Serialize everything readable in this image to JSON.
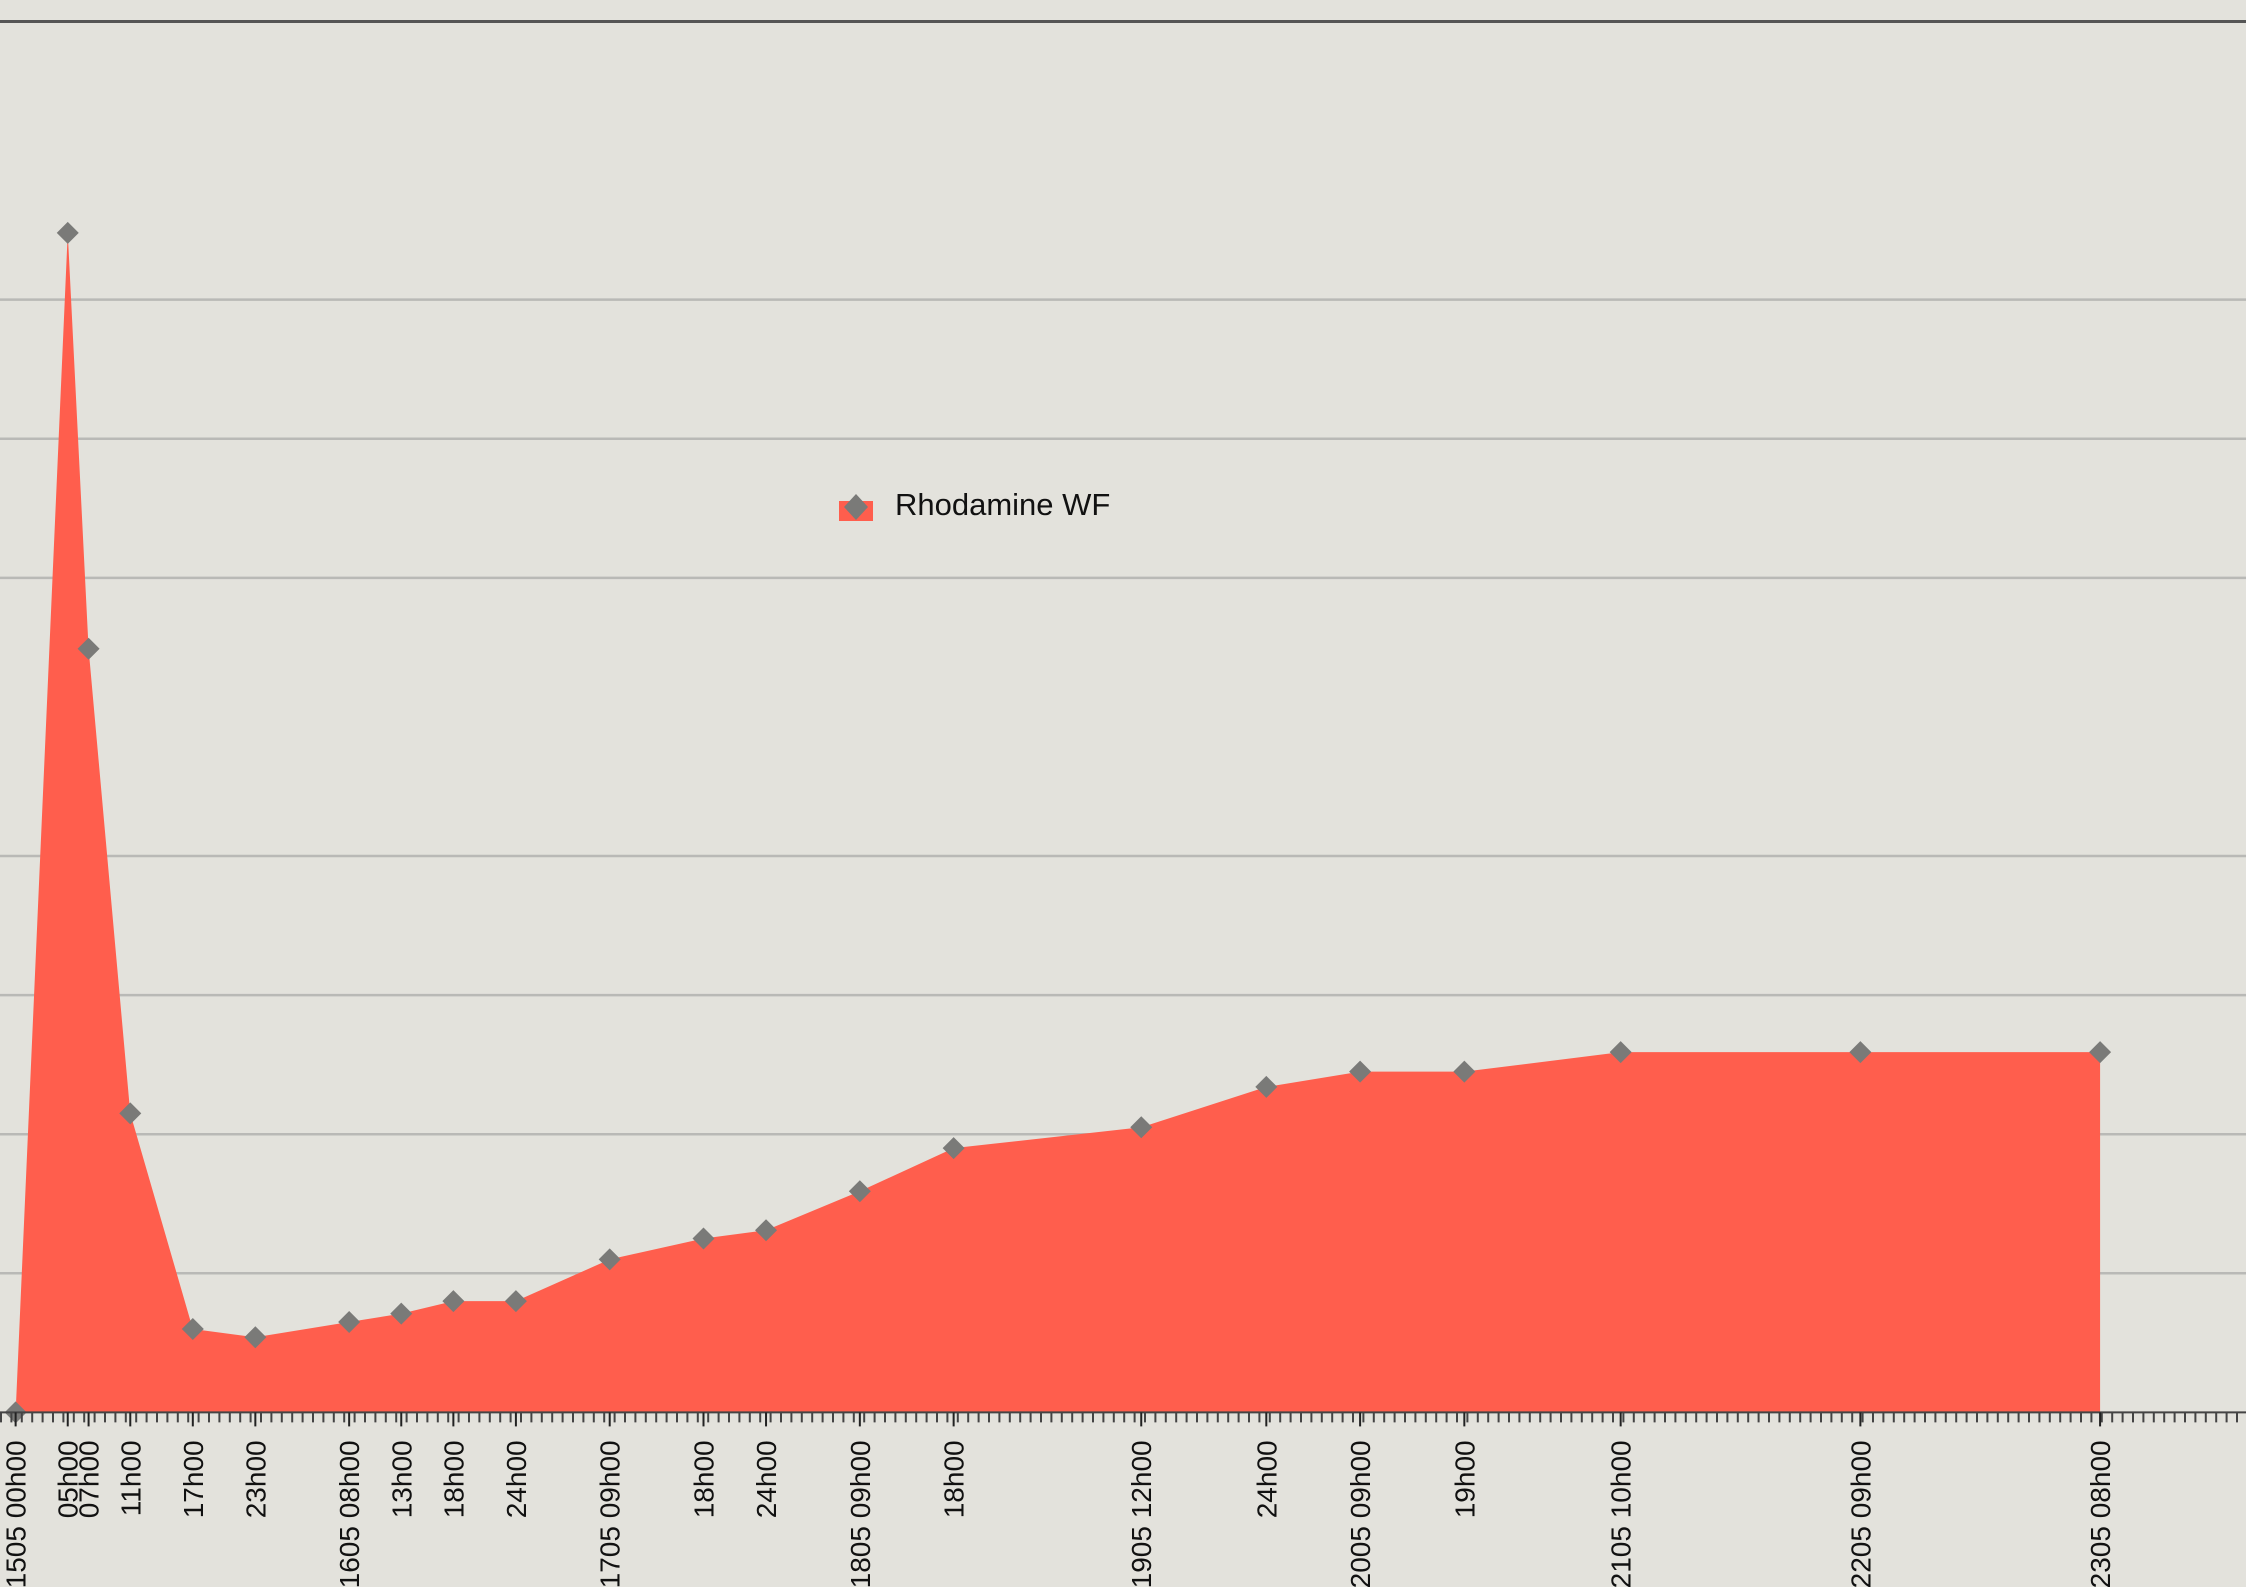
{
  "chart_data": {
    "type": "area",
    "color": "#ff5e4d",
    "marker_color": "#7a7a78",
    "grid": true,
    "legend": "top-center",
    "series": [
      {
        "name": "Rhodamine WF",
        "color": "#ff5e4d",
        "x": [
          0,
          5,
          7,
          11,
          17,
          23,
          32,
          37,
          42,
          48,
          57,
          66,
          72,
          81,
          90,
          108,
          120,
          129,
          139,
          154,
          177,
          200
        ],
        "values": [
          0,
          8.48,
          5.49,
          2.15,
          0.6,
          0.54,
          0.65,
          0.71,
          0.8,
          0.8,
          1.1,
          1.25,
          1.31,
          1.59,
          1.9,
          2.05,
          2.34,
          2.45,
          2.45,
          2.59,
          2.59,
          2.59
        ]
      }
    ],
    "xlim": [
      -1.5,
      214
    ],
    "xticks": [
      {
        "value": 0,
        "label": "1505 00h00"
      },
      {
        "value": 5,
        "label": "05h00"
      },
      {
        "value": 7,
        "label": "07h00"
      },
      {
        "value": 11,
        "label": "11h00"
      },
      {
        "value": 17,
        "label": "17h00"
      },
      {
        "value": 23,
        "label": "23h00"
      },
      {
        "value": 32,
        "label": "1605 08h00"
      },
      {
        "value": 37,
        "label": "13h00"
      },
      {
        "value": 42,
        "label": "18h00"
      },
      {
        "value": 48,
        "label": "24h00"
      },
      {
        "value": 57,
        "label": "1705 09h00"
      },
      {
        "value": 66,
        "label": "18h00"
      },
      {
        "value": 72,
        "label": "24h00"
      },
      {
        "value": 81,
        "label": "1805 09h00"
      },
      {
        "value": 90,
        "label": "18h00"
      },
      {
        "value": 108,
        "label": "1905 12h00"
      },
      {
        "value": 120,
        "label": "24h00"
      },
      {
        "value": 129,
        "label": "2005 09h00"
      },
      {
        "value": 139,
        "label": "19h00"
      },
      {
        "value": 154,
        "label": "2105 10h00"
      },
      {
        "value": 177,
        "label": "2205 09h00"
      },
      {
        "value": 200,
        "label": "2305 08h00"
      }
    ],
    "ylim": [
      0,
      10
    ],
    "yticks": [
      1,
      2,
      3,
      4,
      6,
      7,
      8
    ]
  }
}
